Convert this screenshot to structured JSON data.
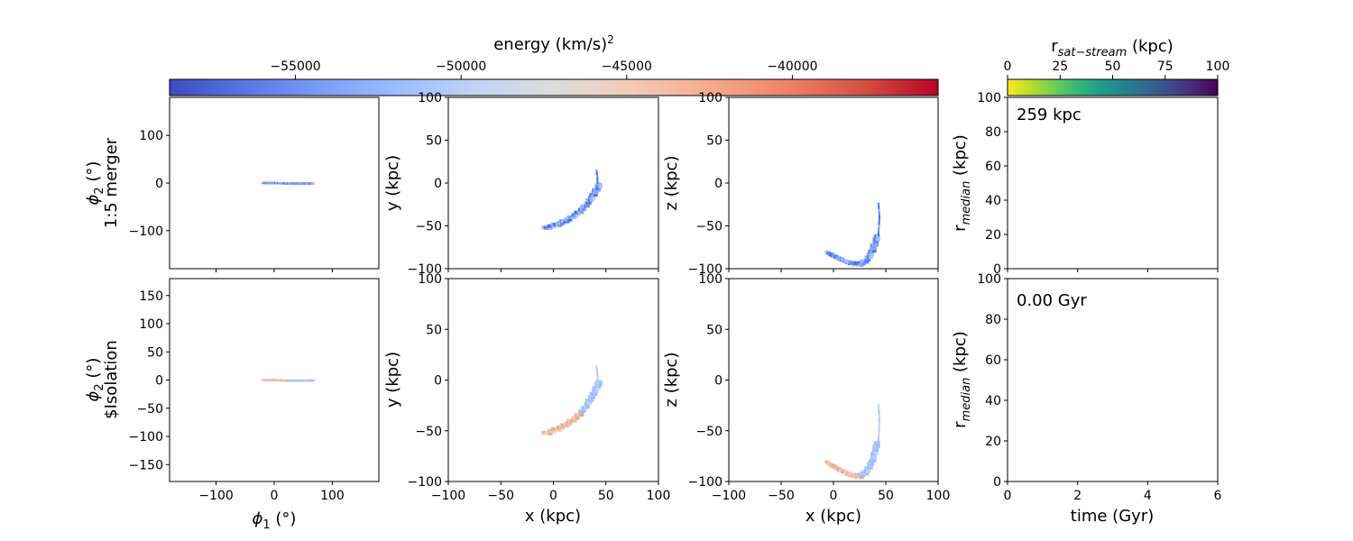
{
  "figure": {
    "energy_colorbar": {
      "label": "energy (km/s)",
      "label_sup": "2",
      "ticks": [
        -55000,
        -50000,
        -45000,
        -40000
      ],
      "tick_labels": [
        "−55000",
        "−50000",
        "−45000",
        "−40000"
      ],
      "range": [
        -58800,
        -35600
      ],
      "colormap": "coolwarm",
      "colors": [
        "#3b4cc0",
        "#5977e3",
        "#7b9ff9",
        "#9ebeff",
        "#c0d4f5",
        "#dddcdc",
        "#f2cbb7",
        "#f7ac8e",
        "#ee8468",
        "#d65244",
        "#b40426"
      ]
    },
    "distance_colorbar": {
      "label_main": "r",
      "label_sub": "sat−stream",
      "label_unit": " (kpc)",
      "ticks": [
        0,
        25,
        50,
        75,
        100
      ],
      "tick_labels": [
        "0",
        "25",
        "50",
        "75",
        "100"
      ],
      "colormap": "viridis_r",
      "colors": [
        "#fde725",
        "#b5de2b",
        "#6ece58",
        "#35b779",
        "#1f9e89",
        "#26828e",
        "#31688e",
        "#3e4989",
        "#482878",
        "#440154"
      ]
    },
    "rows": [
      {
        "row_label": "1:5 merger",
        "annotation": "259 kpc",
        "energy_tone": "cool"
      },
      {
        "row_label": "$Isolation",
        "annotation": "0.00 Gyr",
        "energy_tone": "mixed"
      }
    ],
    "axes": {
      "phi": {
        "xlabel_sym": "ϕ",
        "xlabel_sub": "1",
        "xlabel_unit": " (°)",
        "ylabel_sym": "ϕ",
        "ylabel_sub": "2",
        "ylabel_unit": " (°)",
        "xlim": [
          -180,
          180
        ],
        "xticks": [
          -100,
          0,
          100
        ],
        "xtick_labels": [
          "−100",
          "0",
          "100"
        ],
        "ylim_top": [
          -180,
          180
        ],
        "yticks_top": [
          -100,
          0,
          100
        ],
        "ytick_labels_top": [
          "−100",
          "0",
          "100"
        ],
        "ylim_bottom": [
          -180,
          180
        ],
        "yticks_bottom": [
          -150,
          -100,
          -50,
          0,
          50,
          100,
          150
        ],
        "ytick_labels_bottom": [
          "−150",
          "−100",
          "−50",
          "0",
          "50",
          "100",
          "150"
        ]
      },
      "xy": {
        "xlabel": "x (kpc)",
        "ylabel": "y (kpc)",
        "lim": [
          -100,
          100
        ],
        "ticks": [
          -100,
          -50,
          0,
          50,
          100
        ],
        "tick_labels": [
          "−100",
          "−50",
          "0",
          "50",
          "100"
        ]
      },
      "xz": {
        "xlabel": "x (kpc)",
        "ylabel": "z (kpc)",
        "lim": [
          -100,
          100
        ],
        "ticks": [
          -100,
          -50,
          0,
          50,
          100
        ],
        "tick_labels": [
          "−100",
          "−50",
          "0",
          "50",
          "100"
        ]
      },
      "rmed": {
        "ylabel_main": "r",
        "ylabel_sub": "median",
        "ylabel_unit": " (kpc)",
        "ylim": [
          0,
          100
        ],
        "yticks": [
          0,
          20,
          40,
          60,
          80,
          100
        ],
        "ytick_labels": [
          "0",
          "20",
          "40",
          "60",
          "80",
          "100"
        ],
        "xlabel": "time (Gyr)",
        "xlim": [
          0,
          6
        ],
        "xticks": [
          0,
          2,
          4,
          6
        ],
        "xtick_labels": [
          "0",
          "2",
          "4",
          "6"
        ]
      }
    }
  },
  "chart_data": [
    {
      "type": "scatter",
      "panel": "1:5 merger ϕ1-ϕ2",
      "xlim": [
        -180,
        180
      ],
      "ylim": [
        -180,
        180
      ],
      "stream": [
        [
          -18,
          0
        ],
        [
          0,
          0
        ],
        [
          20,
          -1
        ],
        [
          40,
          -1
        ],
        [
          60,
          -1
        ],
        [
          68,
          -1
        ]
      ],
      "energy_tone": "cool"
    },
    {
      "type": "scatter",
      "panel": "1:5 merger x-y",
      "xlim": [
        -100,
        100
      ],
      "ylim": [
        -100,
        100
      ],
      "stream": [
        [
          -8,
          -53
        ],
        [
          5,
          -48
        ],
        [
          15,
          -42
        ],
        [
          25,
          -34
        ],
        [
          33,
          -23
        ],
        [
          38,
          -14
        ],
        [
          42,
          -6
        ],
        [
          44,
          -1
        ]
      ],
      "spur": [
        [
          42,
          -6
        ],
        [
          42,
          5
        ],
        [
          41,
          15
        ]
      ],
      "energy_tone": "cool"
    },
    {
      "type": "scatter",
      "panel": "1:5 merger x-z",
      "xlim": [
        -100,
        100
      ],
      "ylim": [
        -100,
        100
      ],
      "stream": [
        [
          -5,
          -82
        ],
        [
          5,
          -88
        ],
        [
          15,
          -93
        ],
        [
          25,
          -95
        ],
        [
          32,
          -90
        ],
        [
          37,
          -80
        ],
        [
          40,
          -70
        ],
        [
          42,
          -60
        ]
      ],
      "spur": [
        [
          43,
          -60
        ],
        [
          44,
          -40
        ],
        [
          43,
          -22
        ]
      ],
      "energy_tone": "cool"
    },
    {
      "type": "line",
      "panel": "1:5 merger r_median",
      "xlim": [
        0,
        6
      ],
      "ylim": [
        0,
        100
      ],
      "series": []
    },
    {
      "type": "scatter",
      "panel": "$Isolation ϕ1-ϕ2",
      "xlim": [
        -180,
        180
      ],
      "ylim": [
        -180,
        180
      ],
      "stream": [
        [
          -18,
          0
        ],
        [
          0,
          0
        ],
        [
          20,
          -1
        ],
        [
          40,
          -1
        ],
        [
          60,
          -1
        ],
        [
          68,
          -1
        ]
      ],
      "energy_tone": "mixed"
    },
    {
      "type": "scatter",
      "panel": "$Isolation x-y",
      "xlim": [
        -100,
        100
      ],
      "ylim": [
        -100,
        100
      ],
      "stream": [
        [
          -8,
          -53
        ],
        [
          5,
          -48
        ],
        [
          15,
          -42
        ],
        [
          25,
          -34
        ],
        [
          33,
          -23
        ],
        [
          38,
          -14
        ],
        [
          42,
          -6
        ],
        [
          44,
          -1
        ]
      ],
      "spur": [
        [
          42,
          -6
        ],
        [
          42,
          5
        ],
        [
          41,
          15
        ]
      ],
      "energy_tone": "mixed"
    },
    {
      "type": "scatter",
      "panel": "$Isolation x-z",
      "xlim": [
        -100,
        100
      ],
      "ylim": [
        -100,
        100
      ],
      "stream": [
        [
          -5,
          -82
        ],
        [
          5,
          -88
        ],
        [
          15,
          -93
        ],
        [
          25,
          -95
        ],
        [
          32,
          -90
        ],
        [
          37,
          -80
        ],
        [
          40,
          -70
        ],
        [
          42,
          -60
        ]
      ],
      "spur": [
        [
          43,
          -60
        ],
        [
          44,
          -40
        ],
        [
          43,
          -22
        ]
      ],
      "energy_tone": "mixed"
    },
    {
      "type": "line",
      "panel": "$Isolation r_median",
      "xlim": [
        0,
        6
      ],
      "ylim": [
        0,
        100
      ],
      "series": []
    }
  ]
}
